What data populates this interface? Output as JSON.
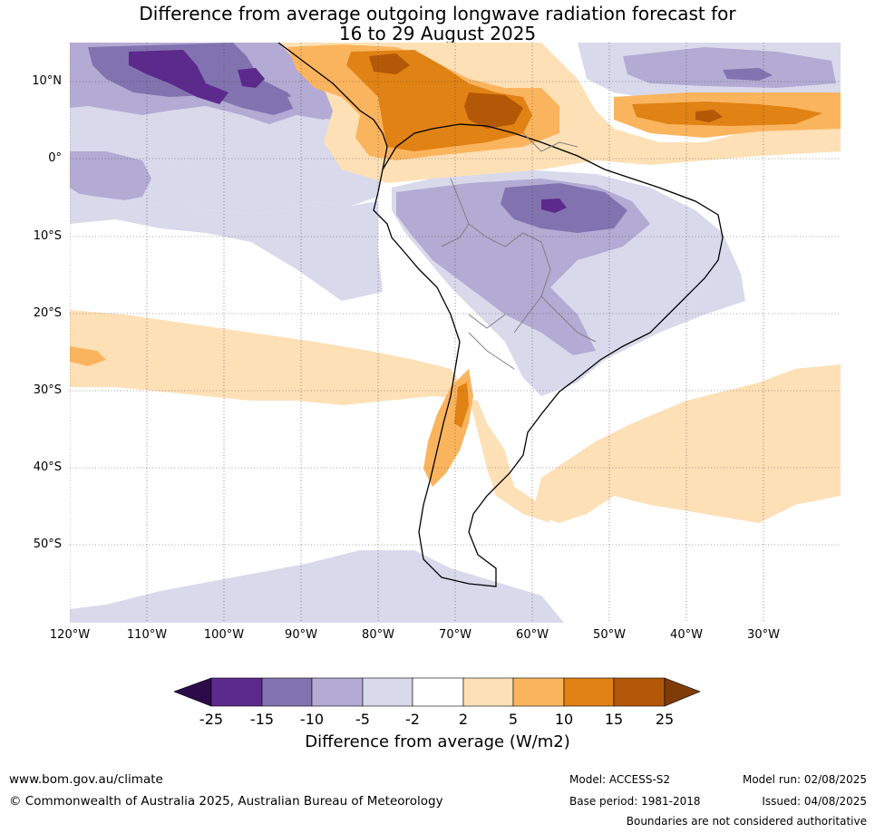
{
  "title_line1": "Difference from average outgoing longwave radiation forecast for",
  "title_line2": "16 to 29 August 2025",
  "lat_labels": [
    "10°N",
    "0°",
    "10°S",
    "20°S",
    "30°S",
    "40°S",
    "50°S"
  ],
  "lon_labels": [
    "120°W",
    "110°W",
    "100°W",
    "90°W",
    "80°W",
    "70°W",
    "60°W",
    "50°W",
    "40°W",
    "30°W"
  ],
  "colorbar": {
    "labels": [
      "-25",
      "-15",
      "-10",
      "-5",
      "-2",
      "2",
      "5",
      "10",
      "15",
      "25"
    ],
    "colors": [
      "#2d0a4a",
      "#5b2a8c",
      "#8273b0",
      "#b3abd3",
      "#d9d9ec",
      "#ffffff",
      "#fee0b6",
      "#fbb45e",
      "#e08214",
      "#b35806",
      "#7f3b08"
    ],
    "title": "Difference from average (W/m2)"
  },
  "footer": {
    "website": "www.bom.gov.au/climate",
    "copyright": "© Commonwealth of Australia 2025, Australian Bureau of Meteorology",
    "model": "Model: ACCESS-S2",
    "base_period": "Base period: 1981-2018",
    "model_run": "Model run: 02/08/2025",
    "issued": "Issued: 04/08/2025",
    "boundaries_note": "Boundaries are not considered authoritative"
  }
}
